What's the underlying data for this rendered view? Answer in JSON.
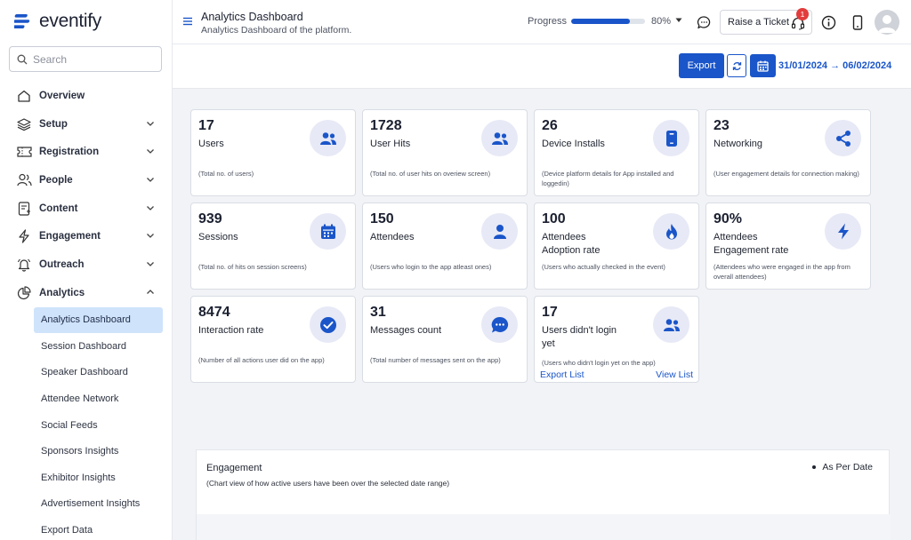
{
  "brand": {
    "name": "eventify",
    "accent": "#1a55c9"
  },
  "search": {
    "placeholder": "Search"
  },
  "sidebar": {
    "items": [
      {
        "label": "Overview",
        "icon": "home-icon"
      },
      {
        "label": "Setup",
        "icon": "layers-icon"
      },
      {
        "label": "Registration",
        "icon": "ticket-icon"
      },
      {
        "label": "People",
        "icon": "users-icon"
      },
      {
        "label": "Content",
        "icon": "document-icon"
      },
      {
        "label": "Engagement",
        "icon": "bolt-icon"
      },
      {
        "label": "Outreach",
        "icon": "bell-icon"
      },
      {
        "label": "Analytics",
        "icon": "pie-chart-icon"
      }
    ],
    "analytics_sub": [
      "Analytics Dashboard",
      "Session Dashboard",
      "Speaker Dashboard",
      "Attendee Network",
      "Social Feeds",
      "Sponsors Insights",
      "Exhibitor Insights",
      "Advertisement Insights",
      "Export Data"
    ],
    "active_sub": "Analytics Dashboard"
  },
  "header": {
    "title": "Analytics Dashboard",
    "subtitle": "Analytics Dashboard of the platform.",
    "progress_label": "Progress",
    "progress_value": 80,
    "progress_text": "80%",
    "ticket_label": "Raise a Ticket",
    "ticket_count": "1"
  },
  "toolbar": {
    "export_label": "Export",
    "date_range": "31/01/2024 → 06/02/2024"
  },
  "cards": [
    {
      "value": "17",
      "name": "Users",
      "desc": "(Total no. of users)",
      "icon": "users-icon"
    },
    {
      "value": "1728",
      "name": "User Hits",
      "desc": "(Total no. of user hits on overiew screen)",
      "icon": "users-icon"
    },
    {
      "value": "26",
      "name": "Device Installs",
      "desc": "(Device platform details for App installed and loggedin)",
      "icon": "mobile-icon"
    },
    {
      "value": "23",
      "name": "Networking",
      "desc": "(User engagement details for connection making)",
      "icon": "share-icon"
    },
    {
      "value": "939",
      "name": "Sessions",
      "desc": "(Total no. of hits on session screens)",
      "icon": "calendar-icon"
    },
    {
      "value": "150",
      "name": "Attendees",
      "desc": "(Users who login to the app atleast ones)",
      "icon": "person-icon"
    },
    {
      "value": "100",
      "name": "Attendees\nAdoption rate",
      "desc": "(Users who actually checked in the event)",
      "icon": "flame-icon"
    },
    {
      "value": "90%",
      "name": "Attendees\nEngagement rate",
      "desc": "(Attendees who were engaged in the app from overall attendees)",
      "icon": "bolt-icon"
    },
    {
      "value": "8474",
      "name": "Interaction rate",
      "desc": "(Number of all actions user did on the app)",
      "icon": "check-circle-icon"
    },
    {
      "value": "31",
      "name": "Messages count",
      "desc": "(Total number of messages sent on the app)",
      "icon": "chat-icon"
    },
    {
      "value": "17",
      "name": "Users didn't login\nyet",
      "desc": "(Users who didn't login yet on the app)",
      "icon": "users-icon"
    }
  ],
  "card_links": {
    "export_list": "Export List",
    "view_list": "View List"
  },
  "engagement": {
    "title": "Engagement",
    "subtitle": "(Chart view of how active users have been over the selected date range)",
    "legend": "As Per Date"
  }
}
